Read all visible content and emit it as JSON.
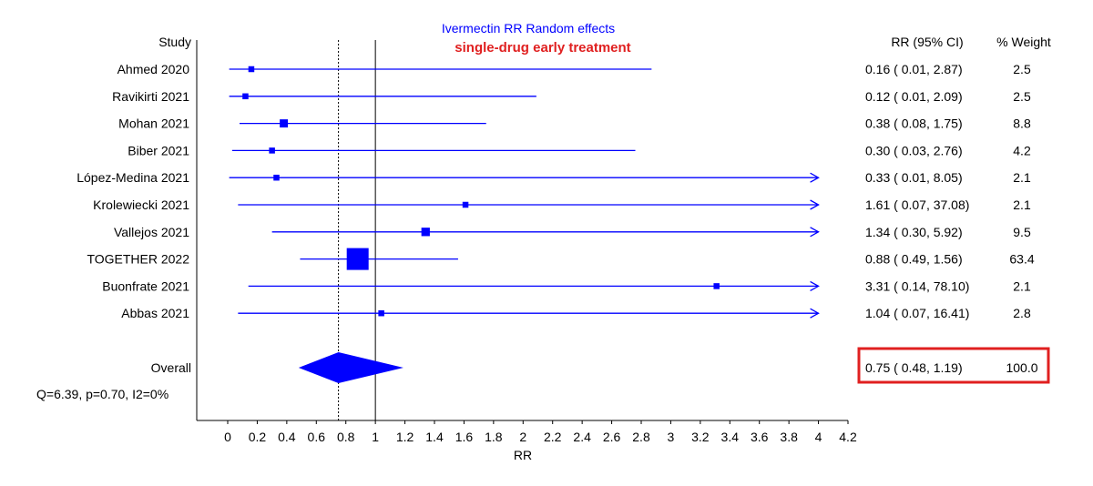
{
  "chart_data": {
    "type": "forest",
    "title": "Ivermectin RR Random effects",
    "subtitle": "single-drug early treatment",
    "xlabel": "RR",
    "xlim": [
      0,
      4.2
    ],
    "xticks": [
      "0",
      "0.2",
      "0.4",
      "0.6",
      "0.8",
      "1",
      "1.2",
      "1.4",
      "1.6",
      "1.8",
      "2",
      "2.2",
      "2.4",
      "2.6",
      "2.8",
      "3",
      "3.2",
      "3.4",
      "3.6",
      "3.8",
      "4",
      "4.2"
    ],
    "reference_line": 1,
    "pooled_line": 0.75,
    "headers": {
      "study": "Study",
      "rr": "RR (95% CI)",
      "weight": "% Weight"
    },
    "studies": [
      {
        "name": "Ahmed 2020",
        "rr": 0.16,
        "lo": 0.01,
        "hi": 2.87,
        "weight": 2.5,
        "ci_text": "0.16  (  0.01,  2.87)",
        "weight_text": "2.5"
      },
      {
        "name": "Ravikirti 2021",
        "rr": 0.12,
        "lo": 0.01,
        "hi": 2.09,
        "weight": 2.5,
        "ci_text": "0.12  (  0.01,  2.09)",
        "weight_text": "2.5"
      },
      {
        "name": "Mohan 2021",
        "rr": 0.38,
        "lo": 0.08,
        "hi": 1.75,
        "weight": 8.8,
        "ci_text": "0.38  (  0.08,  1.75)",
        "weight_text": "8.8"
      },
      {
        "name": "Biber 2021",
        "rr": 0.3,
        "lo": 0.03,
        "hi": 2.76,
        "weight": 4.2,
        "ci_text": "0.30  (  0.03,  2.76)",
        "weight_text": "4.2"
      },
      {
        "name": "López-Medina 2021",
        "rr": 0.33,
        "lo": 0.01,
        "hi": 8.05,
        "weight": 2.1,
        "ci_text": "0.33  (  0.01,  8.05)",
        "weight_text": "2.1"
      },
      {
        "name": "Krolewiecki 2021",
        "rr": 1.61,
        "lo": 0.07,
        "hi": 37.08,
        "weight": 2.1,
        "ci_text": "1.61  (  0.07, 37.08)",
        "weight_text": "2.1"
      },
      {
        "name": "Vallejos 2021",
        "rr": 1.34,
        "lo": 0.3,
        "hi": 5.92,
        "weight": 9.5,
        "ci_text": "1.34  (  0.30,  5.92)",
        "weight_text": "9.5"
      },
      {
        "name": "TOGETHER 2022",
        "rr": 0.88,
        "lo": 0.49,
        "hi": 1.56,
        "weight": 63.4,
        "ci_text": "0.88  (  0.49,  1.56)",
        "weight_text": "63.4"
      },
      {
        "name": "Buonfrate 2021",
        "rr": 3.31,
        "lo": 0.14,
        "hi": 78.1,
        "weight": 2.1,
        "ci_text": "3.31  (  0.14, 78.10)",
        "weight_text": "2.1"
      },
      {
        "name": "Abbas 2021",
        "rr": 1.04,
        "lo": 0.07,
        "hi": 16.41,
        "weight": 2.8,
        "ci_text": "1.04  (  0.07, 16.41)",
        "weight_text": "2.8"
      }
    ],
    "overall": {
      "name": "Overall",
      "rr": 0.75,
      "lo": 0.48,
      "hi": 1.19,
      "weight": 100.0,
      "ci_text": "0.75  (  0.48,  1.19)",
      "weight_text": "100.0"
    },
    "heterogeneity": "Q=6.39, p=0.70, I2=0%",
    "colors": {
      "marks": "#0000ff",
      "title": "#0000ff",
      "subtitle": "#e02020",
      "highlight_box": "#e02020",
      "axis": "#000000"
    }
  }
}
